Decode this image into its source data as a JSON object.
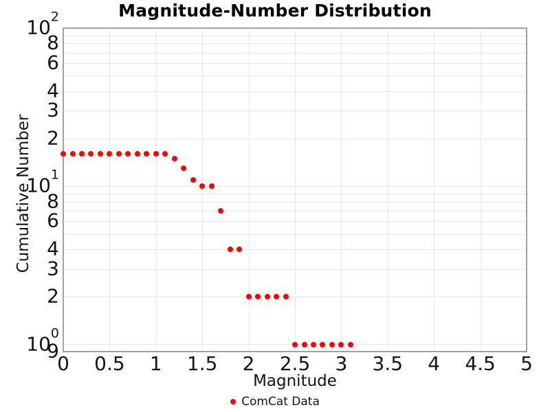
{
  "title": "Magnitude-Number Distribution",
  "legend": {
    "items": [
      {
        "label": "ComCat Data",
        "marker_color": "#ff0000"
      }
    ]
  },
  "colors": {
    "grid": "#e8e8e8",
    "plot_border": "#a2a2a2",
    "text": "#141414",
    "marker": "#ff0000"
  },
  "chart_data": {
    "type": "scatter",
    "title": "Magnitude-Number Distribution",
    "xlabel": "Magnitude",
    "ylabel": "Cumulative Number",
    "x_range": [
      0,
      5
    ],
    "y_range": [
      0.9,
      100
    ],
    "y_scale": "log",
    "grid": true,
    "legend_position": "bottom-center",
    "x_ticks": [
      {
        "v": 0,
        "label": "0"
      },
      {
        "v": 0.5,
        "label": "0.5"
      },
      {
        "v": 1,
        "label": "1"
      },
      {
        "v": 1.5,
        "label": "1.5"
      },
      {
        "v": 2,
        "label": "2"
      },
      {
        "v": 2.5,
        "label": "2.5"
      },
      {
        "v": 3,
        "label": "3"
      },
      {
        "v": 3.5,
        "label": "3.5"
      },
      {
        "v": 4,
        "label": "4"
      },
      {
        "v": 4.5,
        "label": "4.5"
      },
      {
        "v": 5,
        "label": "5"
      }
    ],
    "y_ticks": [
      {
        "v": 100,
        "base": "10",
        "exp": "2"
      },
      {
        "v": 80,
        "label": "8"
      },
      {
        "v": 60,
        "label": "6"
      },
      {
        "v": 40,
        "label": "4"
      },
      {
        "v": 30,
        "label": "3"
      },
      {
        "v": 20,
        "label": "2"
      },
      {
        "v": 10,
        "base": "10",
        "exp": "1"
      },
      {
        "v": 8,
        "label": "8"
      },
      {
        "v": 6,
        "label": "6"
      },
      {
        "v": 4,
        "label": "4"
      },
      {
        "v": 3,
        "label": "3"
      },
      {
        "v": 2,
        "label": "2"
      },
      {
        "v": 1,
        "base": "10",
        "exp": "0"
      },
      {
        "v": 0.9,
        "label": "9"
      }
    ],
    "x_gridlines": [
      0.5,
      1,
      1.5,
      2,
      2.5,
      3,
      3.5,
      4,
      4.5
    ],
    "y_gridlines": [
      90,
      80,
      70,
      60,
      50,
      40,
      30,
      20,
      10,
      9,
      8,
      7,
      6,
      5,
      4,
      3,
      2,
      1
    ],
    "series": [
      {
        "name": "ComCat Data",
        "color": "#ff0000",
        "marker": "circle",
        "points": [
          [
            0.0,
            16
          ],
          [
            0.1,
            16
          ],
          [
            0.2,
            16
          ],
          [
            0.3,
            16
          ],
          [
            0.4,
            16
          ],
          [
            0.5,
            16
          ],
          [
            0.6,
            16
          ],
          [
            0.7,
            16
          ],
          [
            0.8,
            16
          ],
          [
            0.9,
            16
          ],
          [
            1.0,
            16
          ],
          [
            1.1,
            16
          ],
          [
            1.2,
            15
          ],
          [
            1.3,
            13
          ],
          [
            1.4,
            11
          ],
          [
            1.5,
            10
          ],
          [
            1.6,
            10
          ],
          [
            1.7,
            7
          ],
          [
            1.8,
            4
          ],
          [
            1.9,
            4
          ],
          [
            2.0,
            2
          ],
          [
            2.1,
            2
          ],
          [
            2.2,
            2
          ],
          [
            2.3,
            2
          ],
          [
            2.4,
            2
          ],
          [
            2.5,
            1
          ],
          [
            2.6,
            1
          ],
          [
            2.7,
            1
          ],
          [
            2.8,
            1
          ],
          [
            2.9,
            1
          ],
          [
            3.0,
            1
          ],
          [
            3.1,
            1
          ]
        ]
      }
    ]
  }
}
